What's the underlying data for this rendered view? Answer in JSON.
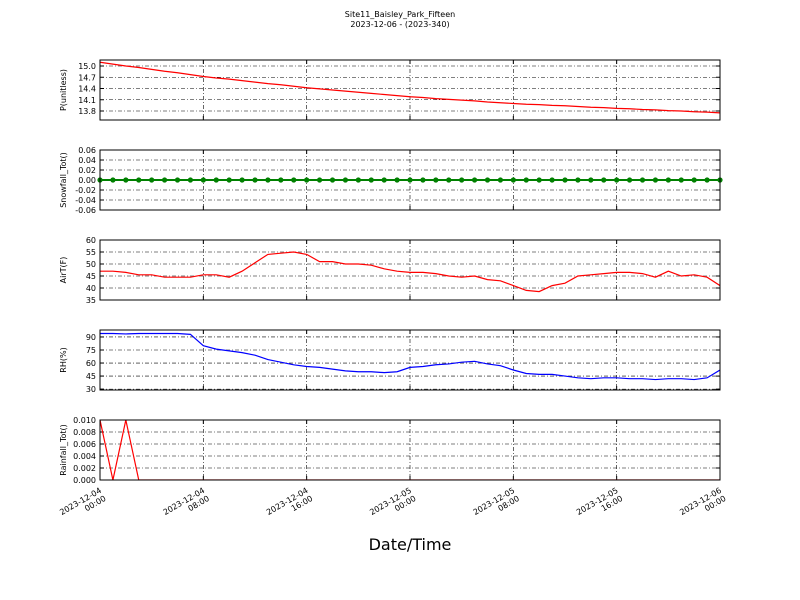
{
  "chart_data": {
    "type": "line",
    "title": "Site11_Baisley_Park_Fifteen",
    "subtitle": "2023-12-06 - (2023-340)",
    "xlabel": "Date/Time",
    "x": [
      "2023-12-04 00:00",
      "2023-12-04 01:00",
      "2023-12-04 02:00",
      "2023-12-04 03:00",
      "2023-12-04 04:00",
      "2023-12-04 05:00",
      "2023-12-04 06:00",
      "2023-12-04 07:00",
      "2023-12-04 08:00",
      "2023-12-04 09:00",
      "2023-12-04 10:00",
      "2023-12-04 11:00",
      "2023-12-04 12:00",
      "2023-12-04 13:00",
      "2023-12-04 14:00",
      "2023-12-04 15:00",
      "2023-12-04 16:00",
      "2023-12-04 17:00",
      "2023-12-04 18:00",
      "2023-12-04 19:00",
      "2023-12-04 20:00",
      "2023-12-04 21:00",
      "2023-12-04 22:00",
      "2023-12-04 23:00",
      "2023-12-05 00:00",
      "2023-12-05 01:00",
      "2023-12-05 02:00",
      "2023-12-05 03:00",
      "2023-12-05 04:00",
      "2023-12-05 05:00",
      "2023-12-05 06:00",
      "2023-12-05 07:00",
      "2023-12-05 08:00",
      "2023-12-05 09:00",
      "2023-12-05 10:00",
      "2023-12-05 11:00",
      "2023-12-05 12:00",
      "2023-12-05 13:00",
      "2023-12-05 14:00",
      "2023-12-05 15:00",
      "2023-12-05 16:00",
      "2023-12-05 17:00",
      "2023-12-05 18:00",
      "2023-12-05 19:00",
      "2023-12-05 20:00",
      "2023-12-05 21:00",
      "2023-12-05 22:00",
      "2023-12-05 23:00",
      "2023-12-06 00:00"
    ],
    "xticks": [
      "2023-12-04 00:00",
      "2023-12-04 08:00",
      "2023-12-04 16:00",
      "2023-12-05 00:00",
      "2023-12-05 08:00",
      "2023-12-05 16:00",
      "2023-12-06 00:00"
    ],
    "grid": true,
    "panels": [
      {
        "ylabel": "P(unitless)",
        "ylim": [
          13.56,
          15.16
        ],
        "yticks": [
          {
            "value": 13.8,
            "label": "13.8"
          },
          {
            "value": 14.1,
            "label": "14.1"
          },
          {
            "value": 14.4,
            "label": "14.4"
          },
          {
            "value": 14.7,
            "label": "14.7"
          },
          {
            "value": 15.0,
            "label": "15.0"
          }
        ],
        "series": [
          {
            "color": "#ff0000",
            "values": [
              15.1,
              15.05,
              15.0,
              14.96,
              14.91,
              14.86,
              14.82,
              14.77,
              14.72,
              14.68,
              14.65,
              14.61,
              14.57,
              14.53,
              14.5,
              14.46,
              14.42,
              14.39,
              14.36,
              14.33,
              14.3,
              14.27,
              14.24,
              14.21,
              14.18,
              14.16,
              14.13,
              14.11,
              14.09,
              14.07,
              14.04,
              14.02,
              14.0,
              13.98,
              13.97,
              13.95,
              13.94,
              13.92,
              13.9,
              13.89,
              13.87,
              13.86,
              13.84,
              13.83,
              13.81,
              13.8,
              13.78,
              13.77,
              13.75
            ]
          }
        ]
      },
      {
        "ylabel": "Snowfall_Tot()",
        "ylim": [
          -0.06,
          0.06
        ],
        "yticks": [
          -0.06,
          -0.04,
          -0.02,
          {
            "value": 0,
            "label": "0.00"
          },
          0.02,
          0.04,
          0.06
        ],
        "series": [
          {
            "color": "#008000",
            "marker": true,
            "values": [
              0,
              0,
              0,
              0,
              0,
              0,
              0,
              0,
              0,
              0,
              0,
              0,
              0,
              0,
              0,
              0,
              0,
              0,
              0,
              0,
              0,
              0,
              0,
              0,
              0,
              0,
              0,
              0,
              0,
              0,
              0,
              0,
              0,
              0,
              0,
              0,
              0,
              0,
              0,
              0,
              0,
              0,
              0,
              0,
              0,
              0,
              0,
              0,
              0
            ]
          }
        ]
      },
      {
        "ylabel": "AirT(F)",
        "ylim": [
          35,
          60
        ],
        "yticks": [
          35,
          40,
          45,
          50,
          55,
          60
        ],
        "series": [
          {
            "color": "#ff0000",
            "values": [
              47,
              47,
              46.5,
              45.5,
              45.5,
              44.5,
              44.5,
              44.5,
              45.5,
              45.5,
              44.5,
              47,
              50.5,
              54,
              54.5,
              55,
              54,
              51,
              51,
              50,
              50,
              49.5,
              48,
              47,
              46.5,
              46.5,
              46,
              45,
              44.5,
              45,
              43.5,
              43,
              41,
              39,
              38.5,
              41,
              42,
              45,
              45.5,
              46,
              46.5,
              46.5,
              46,
              44.5,
              47,
              45,
              45.5,
              44.5,
              41
            ]
          }
        ]
      },
      {
        "ylabel": "RH(%)",
        "ylim": [
          29,
          98
        ],
        "yticks": [
          30,
          45,
          60,
          75,
          90
        ],
        "series": [
          {
            "color": "#0000ff",
            "values": [
              94,
              94,
              93.5,
              94,
              94,
              94,
              94,
              93,
              80,
              76,
              74,
              72,
              69,
              64,
              61,
              58,
              56,
              55,
              53,
              51,
              50,
              50,
              49,
              50,
              55,
              56,
              58,
              59,
              61,
              62,
              59,
              57,
              52,
              48,
              47,
              47,
              45,
              43,
              42,
              43,
              43,
              42,
              42,
              41,
              42,
              42,
              41,
              43,
              52
            ]
          }
        ]
      },
      {
        "ylabel": "Rainfall_Tot()",
        "ylim": [
          0,
          0.01
        ],
        "yticks": [
          {
            "value": 0,
            "label": "0.000"
          },
          {
            "value": 0.002,
            "label": "0.002"
          },
          {
            "value": 0.004,
            "label": "0.004"
          },
          {
            "value": 0.006,
            "label": "0.006"
          },
          {
            "value": 0.008,
            "label": "0.008"
          },
          {
            "value": 0.01,
            "label": "0.010"
          }
        ],
        "series": [
          {
            "color": "#ff0000",
            "values": [
              0.01,
              0,
              0.01,
              0,
              0,
              0,
              0,
              0,
              0,
              0,
              0,
              0,
              0,
              0,
              0,
              0,
              0,
              0,
              0,
              0,
              0,
              0,
              0,
              0,
              0,
              0,
              0,
              0,
              0,
              0,
              0,
              0,
              0,
              0,
              0,
              0,
              0,
              0,
              0,
              0,
              0,
              0,
              0,
              0,
              0,
              0,
              0,
              0,
              0
            ]
          }
        ]
      }
    ]
  }
}
